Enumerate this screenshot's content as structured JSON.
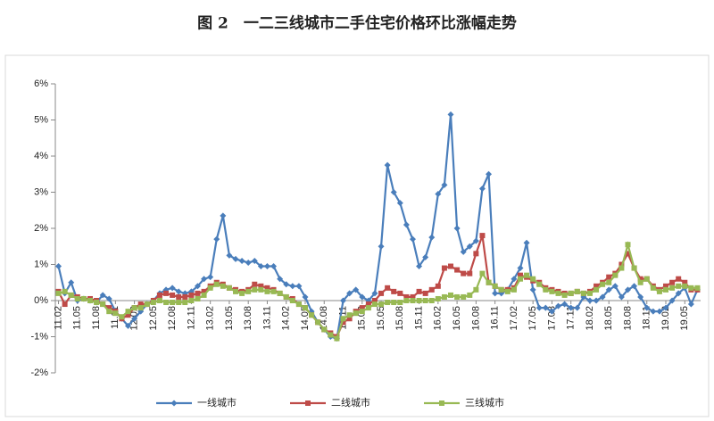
{
  "chart_data": {
    "type": "line",
    "title": "图 2　一二三线城市二手住宅价格环比涨幅走势",
    "categories": [
      "11.02",
      null,
      null,
      "11.05",
      null,
      null,
      "11.08",
      null,
      null,
      "11.11",
      null,
      null,
      "12.02",
      null,
      null,
      "12.05",
      null,
      null,
      "12.08",
      null,
      null,
      "12.11",
      null,
      null,
      "13.02",
      null,
      null,
      "13.05",
      null,
      null,
      "13.08",
      null,
      null,
      "13.11",
      null,
      null,
      "14.02",
      null,
      null,
      "14.05",
      null,
      null,
      "14.08",
      null,
      null,
      "14.11",
      null,
      null,
      "15.02",
      null,
      null,
      "15.05",
      null,
      null,
      "15.08",
      null,
      null,
      "15.11",
      null,
      null,
      "16.02",
      null,
      null,
      "16.05",
      null,
      null,
      "16.08",
      null,
      null,
      "16.11",
      null,
      null,
      "17.02",
      null,
      null,
      "17.05",
      null,
      null,
      "17.08",
      null,
      null,
      "17.11",
      null,
      null,
      "18.02",
      null,
      null,
      "18.05",
      null,
      null,
      "18.08",
      null,
      null,
      "18.11",
      null,
      null,
      "19.02",
      null,
      null,
      "19.05",
      null,
      null
    ],
    "series": [
      {
        "name": "一线城市",
        "color": "#4a7ebb",
        "marker": "diamond",
        "values": [
          0.95,
          0.2,
          0.5,
          0,
          0.05,
          0,
          -0.05,
          0.15,
          0.05,
          -0.3,
          -0.5,
          -0.7,
          -0.5,
          -0.3,
          -0.1,
          0,
          0.2,
          0.3,
          0.35,
          0.25,
          0.2,
          0.25,
          0.4,
          0.6,
          0.65,
          1.7,
          2.35,
          1.25,
          1.15,
          1.1,
          1.05,
          1.1,
          0.95,
          0.95,
          0.95,
          0.6,
          0.45,
          0.4,
          0.4,
          0.1,
          -0.3,
          -0.6,
          -0.8,
          -1.0,
          -1.05,
          0,
          0.2,
          0.3,
          0.1,
          0,
          0.2,
          1.5,
          3.75,
          3.0,
          2.7,
          2.1,
          1.7,
          0.95,
          1.2,
          1.75,
          2.95,
          3.2,
          5.15,
          2.0,
          1.35,
          1.5,
          1.65,
          3.1,
          3.5,
          0.2,
          0.2,
          0.3,
          0.6,
          0.9,
          1.6,
          0.3,
          -0.2,
          -0.2,
          -0.3,
          -0.15,
          -0.1,
          -0.2,
          -0.2,
          0.1,
          0,
          0,
          0.1,
          0.3,
          0.4,
          0.1,
          0.3,
          0.4,
          0.1,
          -0.2,
          -0.3,
          -0.3,
          -0.2,
          0,
          0.2,
          0.35,
          -0.1,
          0.3
        ]
      },
      {
        "name": "二线城市",
        "color": "#be4b48",
        "marker": "square",
        "values": [
          0.25,
          -0.1,
          0.15,
          0.1,
          0.05,
          0.05,
          0,
          -0.1,
          -0.2,
          -0.3,
          -0.5,
          -0.4,
          -0.2,
          -0.1,
          -0.1,
          0,
          0.15,
          0.2,
          0.15,
          0.1,
          0.1,
          0.15,
          0.2,
          0.25,
          0.4,
          0.5,
          0.45,
          0.35,
          0.3,
          0.25,
          0.3,
          0.45,
          0.4,
          0.35,
          0.3,
          0.2,
          0.1,
          0.05,
          -0.1,
          -0.2,
          -0.4,
          -0.6,
          -0.8,
          -0.9,
          -1.0,
          -0.6,
          -0.5,
          -0.3,
          -0.2,
          -0.1,
          0,
          0.2,
          0.35,
          0.25,
          0.2,
          0.1,
          0.1,
          0.25,
          0.2,
          0.3,
          0.4,
          0.9,
          0.95,
          0.85,
          0.75,
          0.75,
          1.3,
          1.8,
          0.5,
          0.4,
          0.3,
          0.3,
          0.35,
          0.7,
          0.65,
          0.55,
          0.5,
          0.35,
          0.3,
          0.25,
          0.2,
          0.2,
          0.25,
          0.2,
          0.25,
          0.4,
          0.5,
          0.65,
          0.75,
          1.0,
          1.3,
          0.9,
          0.6,
          0.6,
          0.4,
          0.3,
          0.4,
          0.5,
          0.6,
          0.5,
          0.3,
          0.3
        ]
      },
      {
        "name": "三线城市",
        "color": "#98b954",
        "marker": "square",
        "values": [
          0.2,
          0.25,
          0.15,
          0.05,
          0.05,
          0,
          -0.05,
          -0.1,
          -0.3,
          -0.35,
          -0.45,
          -0.3,
          -0.2,
          -0.2,
          -0.1,
          -0.05,
          0,
          -0.05,
          -0.05,
          -0.05,
          -0.05,
          0,
          0.05,
          0.15,
          0.35,
          0.45,
          0.4,
          0.35,
          0.25,
          0.2,
          0.25,
          0.3,
          0.3,
          0.25,
          0.25,
          0.2,
          0.1,
          0,
          -0.1,
          -0.2,
          -0.4,
          -0.6,
          -0.8,
          -0.95,
          -1.05,
          -0.5,
          -0.4,
          -0.35,
          -0.3,
          -0.2,
          -0.1,
          -0.1,
          -0.05,
          -0.05,
          -0.05,
          0,
          0,
          0,
          0,
          0,
          0.05,
          0.1,
          0.15,
          0.1,
          0.1,
          0.15,
          0.3,
          0.75,
          0.5,
          0.4,
          0.3,
          0.25,
          0.3,
          0.6,
          0.7,
          0.6,
          0.45,
          0.3,
          0.25,
          0.2,
          0.15,
          0.2,
          0.25,
          0.2,
          0.2,
          0.3,
          0.45,
          0.5,
          0.7,
          0.9,
          1.55,
          0.9,
          0.5,
          0.6,
          0.35,
          0.25,
          0.3,
          0.35,
          0.4,
          0.4,
          0.35,
          0.35
        ]
      }
    ],
    "ylim": [
      -2,
      6
    ],
    "yticks": [
      {
        "value": -2,
        "label": "-2%"
      },
      {
        "value": -1,
        "label": "-1%"
      },
      {
        "value": 0,
        "label": "0%"
      },
      {
        "value": 1,
        "label": "1%"
      },
      {
        "value": 2,
        "label": "2%"
      },
      {
        "value": 3,
        "label": "3%"
      },
      {
        "value": 4,
        "label": "4%"
      },
      {
        "value": 5,
        "label": "5%"
      },
      {
        "value": 6,
        "label": "6%"
      }
    ],
    "grid": false,
    "legend": "bottom"
  }
}
